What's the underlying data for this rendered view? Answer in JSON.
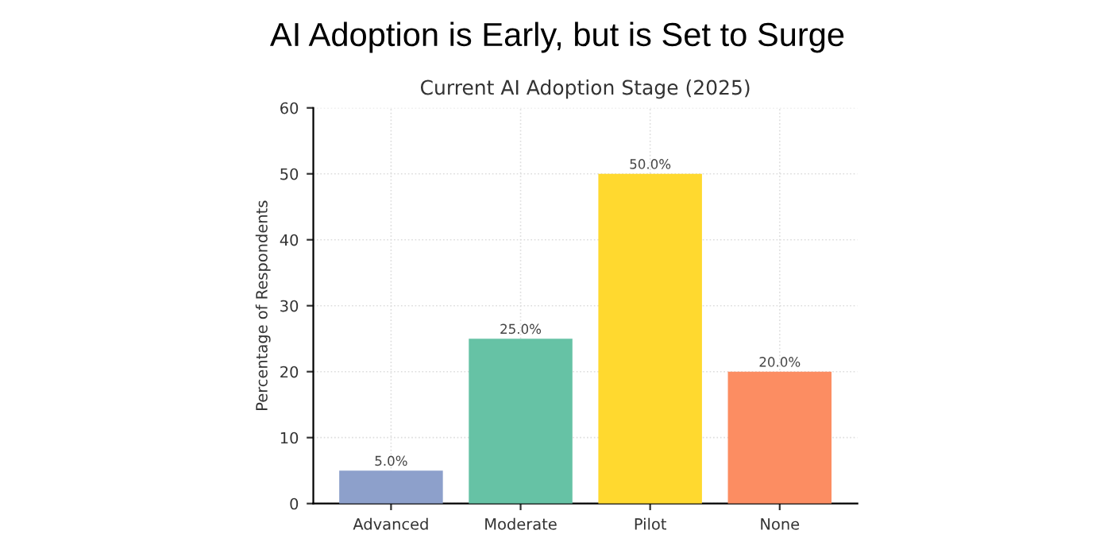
{
  "chart_data": {
    "type": "bar",
    "title": "AI Adoption is Early, but is Set to Surge",
    "subtitle": "Current AI Adoption Stage (2025)",
    "ylabel": "Percentage of Respondents",
    "categories": [
      "Advanced",
      "Moderate",
      "Pilot",
      "None"
    ],
    "values": [
      5,
      25,
      50,
      20
    ],
    "colors": [
      "#8da0cb",
      "#66c2a5",
      "#ffd92f",
      "#fc8d62"
    ],
    "value_labels": [
      "5.0%",
      "25.0%",
      "50.0%",
      "20.0%"
    ],
    "ylim": [
      0,
      60
    ],
    "yticks": [
      0,
      10,
      20,
      30,
      40,
      50,
      60
    ],
    "grid": true,
    "line_style": "dotted"
  }
}
